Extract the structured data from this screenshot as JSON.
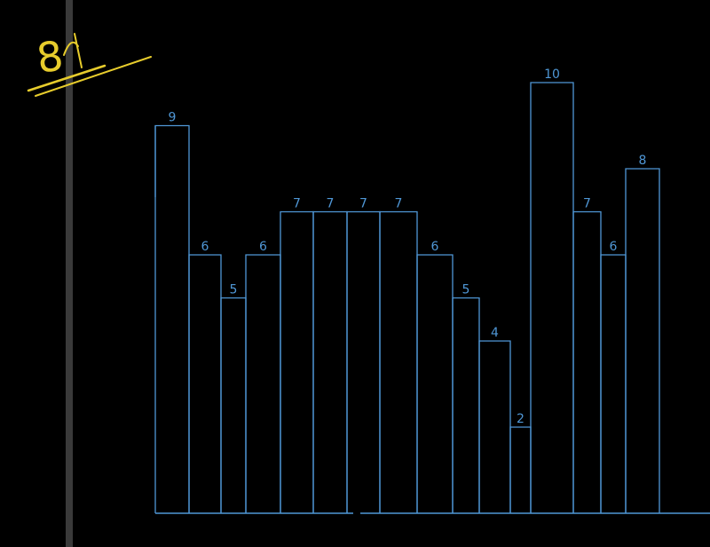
{
  "annotation": {
    "text": "8"
  },
  "colors": {
    "background": "#000000",
    "bar_stroke": "#4f97d6",
    "annotation": "#e7cc2c",
    "divider": "#3a3a3a"
  },
  "chart_data": {
    "type": "bar",
    "values": [
      9,
      6,
      5,
      6,
      7,
      7,
      7,
      7,
      6,
      5,
      4,
      2,
      10,
      7,
      6,
      8
    ],
    "labels": [
      "9",
      "6",
      "5",
      "6",
      "7",
      "7",
      "7",
      "7",
      "6",
      "5",
      "4",
      "2",
      "10",
      "7",
      "6",
      "8"
    ],
    "ylim": [
      0,
      10
    ],
    "grid": false,
    "legend": "none"
  }
}
